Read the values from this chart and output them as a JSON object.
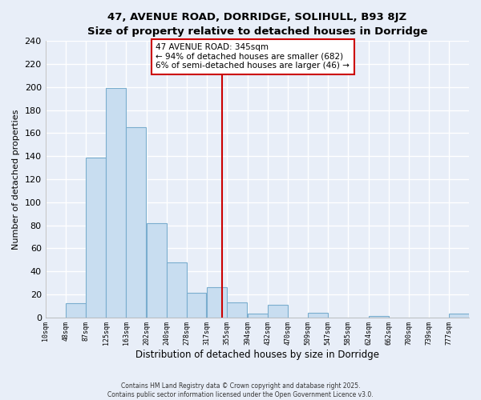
{
  "title": "47, AVENUE ROAD, DORRIDGE, SOLIHULL, B93 8JZ",
  "subtitle": "Size of property relative to detached houses in Dorridge",
  "xlabel": "Distribution of detached houses by size in Dorridge",
  "ylabel": "Number of detached properties",
  "bar_color": "#c8ddf0",
  "bar_edge_color": "#7aadce",
  "background_color": "#e8eef8",
  "grid_color": "#ffffff",
  "bins": [
    10,
    48,
    87,
    125,
    163,
    202,
    240,
    278,
    317,
    355,
    394,
    432,
    470,
    509,
    547,
    585,
    624,
    662,
    700,
    739,
    777
  ],
  "counts": [
    0,
    12,
    139,
    199,
    165,
    82,
    48,
    21,
    26,
    13,
    3,
    11,
    0,
    4,
    0,
    0,
    1,
    0,
    0,
    0,
    3
  ],
  "vline_x": 345,
  "vline_color": "#cc0000",
  "annotation_text": "47 AVENUE ROAD: 345sqm\n← 94% of detached houses are smaller (682)\n6% of semi-detached houses are larger (46) →",
  "annotation_box_color": "#ffffff",
  "annotation_border_color": "#cc0000",
  "ylim": [
    0,
    240
  ],
  "yticks": [
    0,
    20,
    40,
    60,
    80,
    100,
    120,
    140,
    160,
    180,
    200,
    220,
    240
  ],
  "footnote1": "Contains HM Land Registry data © Crown copyright and database right 2025.",
  "footnote2": "Contains public sector information licensed under the Open Government Licence v3.0.",
  "tick_labels": [
    "10sqm",
    "48sqm",
    "87sqm",
    "125sqm",
    "163sqm",
    "202sqm",
    "240sqm",
    "278sqm",
    "317sqm",
    "355sqm",
    "394sqm",
    "432sqm",
    "470sqm",
    "509sqm",
    "547sqm",
    "585sqm",
    "624sqm",
    "662sqm",
    "700sqm",
    "739sqm",
    "777sqm"
  ]
}
